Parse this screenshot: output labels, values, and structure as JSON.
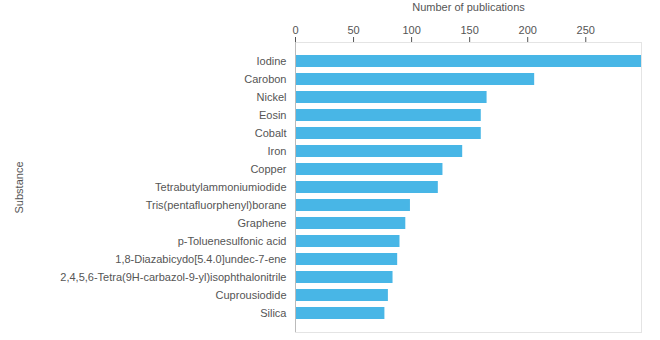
{
  "chart_data": {
    "type": "bar",
    "orientation": "horizontal",
    "x_label": "Number of publications",
    "y_label": "Substance",
    "categories": [
      "Iodine",
      "Carobon",
      "Nickel",
      "Eosin",
      "Cobalt",
      "Iron",
      "Copper",
      "Tetrabutylammoniumiodide",
      "Tris(pentafluorphenyl)borane",
      "Graphene",
      "p-Toluenesulfonic acid",
      "1,8-Diazabicydo[5.4.0]undec-7-ene",
      "2,4,5,6-Tetra(9H-carbazol-9-yl)isophthalonitrile",
      "Cuprousiodide",
      "Silica"
    ],
    "values": [
      298,
      206,
      165,
      160,
      160,
      144,
      127,
      123,
      99,
      95,
      90,
      88,
      84,
      80,
      77
    ],
    "color": "#48b6e6",
    "xlim": [
      0,
      298
    ],
    "xticks": [
      0,
      50,
      100,
      150,
      200,
      250
    ],
    "grid": false
  }
}
